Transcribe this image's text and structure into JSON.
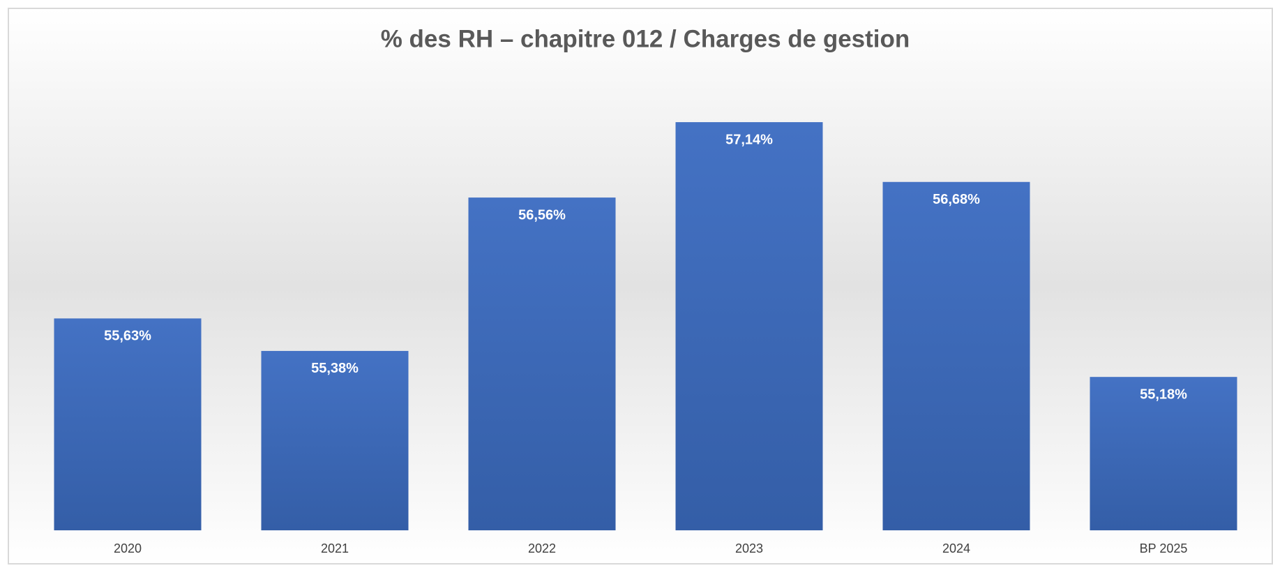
{
  "chart_data": {
    "type": "bar",
    "title": "% des RH – chapitre 012 / Charges de gestion",
    "categories": [
      "2020",
      "2021",
      "2022",
      "2023",
      "2024",
      "BP 2025"
    ],
    "values": [
      55.63,
      55.38,
      56.56,
      57.14,
      56.68,
      55.18
    ],
    "value_labels": [
      "55,63%",
      "55,38%",
      "56,56%",
      "57,14%",
      "56,68%",
      "55,18%"
    ],
    "color": "#4472c4",
    "ylim": [
      54,
      57.5
    ]
  }
}
